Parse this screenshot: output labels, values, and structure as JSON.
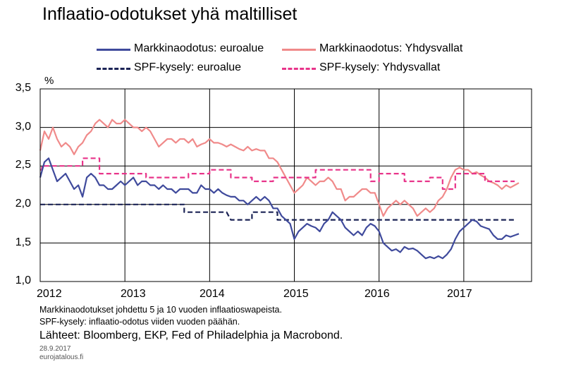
{
  "title": "Inflaatio-odotukset yhä maltilliset",
  "legend": [
    {
      "label": "Markkinaodotus: euroalue",
      "color": "#3f4a9c",
      "style": "solid"
    },
    {
      "label": "Markkinaodotus: Yhdysvallat",
      "color": "#f08a8a",
      "style": "solid"
    },
    {
      "label": "SPF-kysely: euroalue",
      "color": "#1c2456",
      "style": "dashed"
    },
    {
      "label": "SPF-kysely: Yhdysvallat",
      "color": "#e8348a",
      "style": "dashed"
    }
  ],
  "notes": {
    "line1": "Markkinaodotukset johdettu 5 ja 10 vuoden inflaatioswapeista.",
    "line2": "SPF-kysely: inflaatio-odotus viiden vuoden päähän.",
    "sources": "Lähteet: Bloomberg, EKP, Fed of Philadelphia ja Macrobond.",
    "date": "28.9.2017",
    "site": "eurojatalous.fi"
  },
  "chart_data": {
    "type": "line",
    "ylabel": "%",
    "ylim": [
      1.0,
      3.5
    ],
    "yticks": [
      "1,0",
      "1,5",
      "2,0",
      "2,5",
      "3,0",
      "3,5"
    ],
    "xlim": [
      2012.0,
      2017.8
    ],
    "xticks": [
      "2012",
      "2013",
      "2014",
      "2015",
      "2016",
      "2017"
    ],
    "grid": true,
    "legend_position": "top",
    "series": [
      {
        "name": "Markkinaodotus: euroalue",
        "color": "#3f4a9c",
        "dash": false,
        "x": [
          2012.0,
          2012.05,
          2012.1,
          2012.15,
          2012.2,
          2012.25,
          2012.3,
          2012.35,
          2012.4,
          2012.45,
          2012.5,
          2012.55,
          2012.6,
          2012.65,
          2012.7,
          2012.75,
          2012.8,
          2012.85,
          2012.9,
          2012.95,
          2013.0,
          2013.05,
          2013.1,
          2013.15,
          2013.2,
          2013.25,
          2013.3,
          2013.35,
          2013.4,
          2013.45,
          2013.5,
          2013.55,
          2013.6,
          2013.65,
          2013.7,
          2013.75,
          2013.8,
          2013.85,
          2013.9,
          2013.95,
          2014.0,
          2014.05,
          2014.1,
          2014.15,
          2014.2,
          2014.25,
          2014.3,
          2014.35,
          2014.4,
          2014.45,
          2014.5,
          2014.55,
          2014.6,
          2014.65,
          2014.7,
          2014.75,
          2014.8,
          2014.85,
          2014.9,
          2014.95,
          2015.0,
          2015.05,
          2015.1,
          2015.15,
          2015.2,
          2015.25,
          2015.3,
          2015.35,
          2015.4,
          2015.45,
          2015.5,
          2015.55,
          2015.6,
          2015.65,
          2015.7,
          2015.75,
          2015.8,
          2015.85,
          2015.9,
          2015.95,
          2016.0,
          2016.05,
          2016.1,
          2016.15,
          2016.2,
          2016.25,
          2016.3,
          2016.35,
          2016.4,
          2016.45,
          2016.5,
          2016.55,
          2016.6,
          2016.65,
          2016.7,
          2016.75,
          2016.8,
          2016.85,
          2016.9,
          2016.95,
          2017.0,
          2017.05,
          2017.1,
          2017.15,
          2017.2,
          2017.25,
          2017.3,
          2017.35,
          2017.4,
          2017.45,
          2017.5,
          2017.55,
          2017.6,
          2017.65
        ],
        "y": [
          2.35,
          2.55,
          2.6,
          2.45,
          2.3,
          2.35,
          2.4,
          2.3,
          2.2,
          2.25,
          2.1,
          2.35,
          2.4,
          2.35,
          2.25,
          2.25,
          2.2,
          2.2,
          2.25,
          2.3,
          2.25,
          2.3,
          2.35,
          2.25,
          2.3,
          2.3,
          2.25,
          2.25,
          2.2,
          2.25,
          2.2,
          2.2,
          2.15,
          2.2,
          2.2,
          2.2,
          2.15,
          2.15,
          2.25,
          2.2,
          2.2,
          2.15,
          2.2,
          2.15,
          2.12,
          2.1,
          2.1,
          2.05,
          2.05,
          2.0,
          2.05,
          2.1,
          2.05,
          2.1,
          2.05,
          1.95,
          1.95,
          1.85,
          1.8,
          1.75,
          1.55,
          1.65,
          1.7,
          1.75,
          1.72,
          1.7,
          1.65,
          1.75,
          1.8,
          1.9,
          1.85,
          1.8,
          1.7,
          1.65,
          1.6,
          1.65,
          1.6,
          1.7,
          1.75,
          1.72,
          1.65,
          1.5,
          1.45,
          1.4,
          1.42,
          1.38,
          1.45,
          1.42,
          1.43,
          1.4,
          1.35,
          1.3,
          1.32,
          1.3,
          1.33,
          1.3,
          1.35,
          1.42,
          1.55,
          1.65,
          1.7,
          1.75,
          1.8,
          1.78,
          1.72,
          1.7,
          1.68,
          1.6,
          1.55,
          1.55,
          1.6,
          1.58,
          1.6,
          1.62
        ]
      },
      {
        "name": "Markkinaodotus: Yhdysvallat",
        "color": "#f08a8a",
        "dash": false,
        "x": [
          2012.0,
          2012.05,
          2012.1,
          2012.15,
          2012.2,
          2012.25,
          2012.3,
          2012.35,
          2012.4,
          2012.45,
          2012.5,
          2012.55,
          2012.6,
          2012.65,
          2012.7,
          2012.75,
          2012.8,
          2012.85,
          2012.9,
          2012.95,
          2013.0,
          2013.05,
          2013.1,
          2013.15,
          2013.2,
          2013.25,
          2013.3,
          2013.35,
          2013.4,
          2013.45,
          2013.5,
          2013.55,
          2013.6,
          2013.65,
          2013.7,
          2013.75,
          2013.8,
          2013.85,
          2013.9,
          2013.95,
          2014.0,
          2014.05,
          2014.1,
          2014.15,
          2014.2,
          2014.25,
          2014.3,
          2014.35,
          2014.4,
          2014.45,
          2014.5,
          2014.55,
          2014.6,
          2014.65,
          2014.7,
          2014.75,
          2014.8,
          2014.85,
          2014.9,
          2014.95,
          2015.0,
          2015.05,
          2015.1,
          2015.15,
          2015.2,
          2015.25,
          2015.3,
          2015.35,
          2015.4,
          2015.45,
          2015.5,
          2015.55,
          2015.6,
          2015.65,
          2015.7,
          2015.75,
          2015.8,
          2015.85,
          2015.9,
          2015.95,
          2016.0,
          2016.05,
          2016.1,
          2016.15,
          2016.2,
          2016.25,
          2016.3,
          2016.35,
          2016.4,
          2016.45,
          2016.5,
          2016.55,
          2016.6,
          2016.65,
          2016.7,
          2016.75,
          2016.8,
          2016.85,
          2016.9,
          2016.95,
          2017.0,
          2017.05,
          2017.1,
          2017.15,
          2017.2,
          2017.25,
          2017.3,
          2017.35,
          2017.4,
          2017.45,
          2017.5,
          2017.55,
          2017.6,
          2017.65
        ],
        "y": [
          2.7,
          2.95,
          2.85,
          3.0,
          2.85,
          2.75,
          2.8,
          2.75,
          2.65,
          2.75,
          2.8,
          2.9,
          2.95,
          3.05,
          3.1,
          3.05,
          3.0,
          3.1,
          3.05,
          3.05,
          3.1,
          3.05,
          3.0,
          3.0,
          2.95,
          3.0,
          2.95,
          2.85,
          2.75,
          2.8,
          2.85,
          2.85,
          2.8,
          2.85,
          2.85,
          2.8,
          2.85,
          2.75,
          2.78,
          2.8,
          2.85,
          2.8,
          2.8,
          2.78,
          2.75,
          2.78,
          2.75,
          2.72,
          2.7,
          2.75,
          2.7,
          2.72,
          2.7,
          2.7,
          2.6,
          2.6,
          2.55,
          2.45,
          2.35,
          2.25,
          2.15,
          2.2,
          2.25,
          2.35,
          2.3,
          2.25,
          2.3,
          2.3,
          2.35,
          2.3,
          2.2,
          2.2,
          2.05,
          2.1,
          2.1,
          2.15,
          2.2,
          2.2,
          2.15,
          2.15,
          2.0,
          1.85,
          1.95,
          2.0,
          2.05,
          2.0,
          2.05,
          2.0,
          1.95,
          1.85,
          1.9,
          1.95,
          1.9,
          1.95,
          2.05,
          2.1,
          2.2,
          2.35,
          2.45,
          2.48,
          2.45,
          2.45,
          2.4,
          2.42,
          2.38,
          2.35,
          2.3,
          2.28,
          2.25,
          2.2,
          2.25,
          2.22,
          2.25,
          2.28
        ]
      },
      {
        "name": "SPF-kysely: euroalue",
        "color": "#1c2456",
        "dash": true,
        "x": [
          2012.0,
          2013.7,
          2013.7,
          2014.2,
          2014.2,
          2014.25,
          2014.25,
          2014.5,
          2014.5,
          2014.7,
          2014.7,
          2014.8,
          2014.8,
          2017.6
        ],
        "y": [
          2.0,
          2.0,
          1.9,
          1.9,
          1.9,
          1.8,
          1.8,
          1.8,
          1.9,
          1.9,
          1.9,
          1.9,
          1.8,
          1.8
        ]
      },
      {
        "name": "SPF-kysely: Yhdysvallat",
        "color": "#e8348a",
        "dash": true,
        "x": [
          2012.0,
          2012.02,
          2012.02,
          2012.25,
          2012.25,
          2012.5,
          2012.5,
          2012.7,
          2012.7,
          2013.0,
          2013.0,
          2013.25,
          2013.25,
          2013.5,
          2013.5,
          2013.75,
          2013.75,
          2014.0,
          2014.0,
          2014.25,
          2014.25,
          2014.5,
          2014.5,
          2014.75,
          2014.75,
          2015.0,
          2015.0,
          2015.25,
          2015.25,
          2015.5,
          2015.5,
          2015.9,
          2015.9,
          2016.0,
          2016.0,
          2016.3,
          2016.3,
          2016.6,
          2016.6,
          2016.75,
          2016.75,
          2016.9,
          2016.9,
          2017.25,
          2017.25,
          2017.5,
          2017.5,
          2017.6
        ],
        "y": [
          2.45,
          2.45,
          2.5,
          2.5,
          2.5,
          2.5,
          2.6,
          2.6,
          2.4,
          2.4,
          2.4,
          2.4,
          2.35,
          2.35,
          2.35,
          2.35,
          2.4,
          2.4,
          2.45,
          2.45,
          2.35,
          2.35,
          2.3,
          2.3,
          2.35,
          2.35,
          2.35,
          2.35,
          2.45,
          2.45,
          2.45,
          2.45,
          2.3,
          2.3,
          2.4,
          2.4,
          2.3,
          2.3,
          2.35,
          2.35,
          2.2,
          2.2,
          2.4,
          2.4,
          2.3,
          2.3,
          2.3,
          2.3
        ]
      }
    ]
  }
}
